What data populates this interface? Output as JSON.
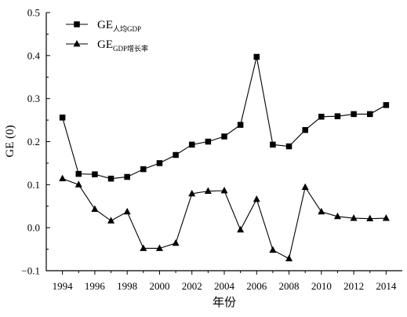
{
  "chart_data": {
    "type": "line",
    "xlabel": "年份",
    "ylabel": "GE (0)",
    "xlim": [
      1993,
      2015
    ],
    "ylim": [
      -0.1,
      0.5
    ],
    "x_ticks": [
      1994,
      1996,
      1998,
      2000,
      2002,
      2004,
      2006,
      2008,
      2010,
      2012,
      2014
    ],
    "y_ticks": [
      -0.1,
      0.0,
      0.1,
      0.2,
      0.3,
      0.4,
      0.5
    ],
    "y_tick_labels": [
      "−0.1",
      "0.0",
      "0.1",
      "0.2",
      "0.3",
      "0.4",
      "0.5"
    ],
    "legend_position": "top-left",
    "grid": false,
    "x": [
      1994,
      1995,
      1996,
      1997,
      1998,
      1999,
      2000,
      2001,
      2002,
      2003,
      2004,
      2005,
      2006,
      2007,
      2008,
      2009,
      2010,
      2011,
      2012,
      2013,
      2014
    ],
    "series": [
      {
        "name": "GE人均GDP",
        "name_main": "GE",
        "name_sub": "人均GDP",
        "marker": "square",
        "color": "#000000",
        "values": [
          0.256,
          0.125,
          0.124,
          0.114,
          0.118,
          0.136,
          0.15,
          0.169,
          0.193,
          0.2,
          0.212,
          0.239,
          0.397,
          0.193,
          0.189,
          0.227,
          0.258,
          0.259,
          0.264,
          0.264,
          0.285
        ]
      },
      {
        "name": "GEGDP增长率",
        "name_main": "GE",
        "name_sub": "GDP增长率",
        "marker": "triangle",
        "color": "#000000",
        "values": [
          0.114,
          0.1,
          0.043,
          0.016,
          0.037,
          -0.048,
          -0.048,
          -0.036,
          0.079,
          0.085,
          0.086,
          -0.005,
          0.066,
          -0.052,
          -0.072,
          0.094,
          0.037,
          0.026,
          0.022,
          0.021,
          0.022
        ]
      }
    ]
  }
}
